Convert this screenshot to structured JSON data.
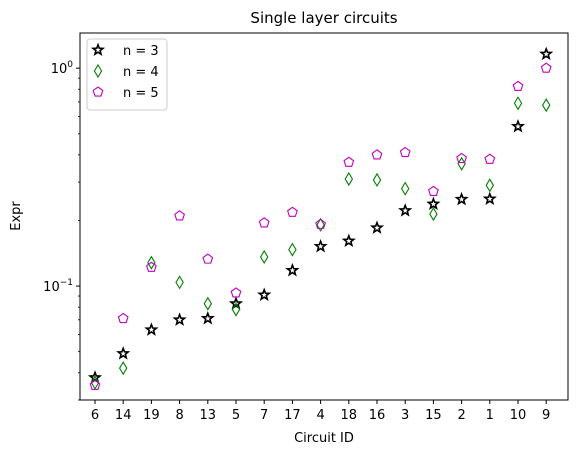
{
  "chart_data": {
    "type": "scatter",
    "title": "Single layer circuits",
    "xlabel": "Circuit ID",
    "ylabel": "Expr",
    "yscale": "log",
    "ylim": [
      0.03,
      1.45
    ],
    "y_ticks": [
      {
        "value": 0.1,
        "base": "10",
        "exp": "−1"
      },
      {
        "value": 1.0,
        "base": "10",
        "exp": "0"
      }
    ],
    "categories": [
      "6",
      "14",
      "19",
      "8",
      "13",
      "5",
      "7",
      "17",
      "4",
      "18",
      "16",
      "3",
      "15",
      "2",
      "1",
      "10",
      "9"
    ],
    "legend_position": "top-left",
    "grid": false,
    "series": [
      {
        "name": "n = 3",
        "marker": "star",
        "color": "#000000",
        "values": [
          0.038,
          0.049,
          0.063,
          0.07,
          0.071,
          0.083,
          0.091,
          0.118,
          0.152,
          0.161,
          0.185,
          0.222,
          0.238,
          0.25,
          0.251,
          0.54,
          1.16
        ]
      },
      {
        "name": "n = 4",
        "marker": "thin_diamond",
        "color": "#008000",
        "values": [
          0.036,
          0.042,
          0.128,
          0.104,
          0.083,
          0.078,
          0.136,
          0.147,
          0.191,
          0.31,
          0.307,
          0.28,
          0.214,
          0.364,
          0.29,
          0.69,
          0.676
        ]
      },
      {
        "name": "n = 5",
        "marker": "pentagon",
        "color": "#bf00bf",
        "values": [
          0.035,
          0.071,
          0.122,
          0.21,
          0.133,
          0.093,
          0.195,
          0.218,
          0.192,
          0.37,
          0.4,
          0.41,
          0.272,
          0.385,
          0.382,
          0.825,
          1.0
        ]
      }
    ]
  }
}
